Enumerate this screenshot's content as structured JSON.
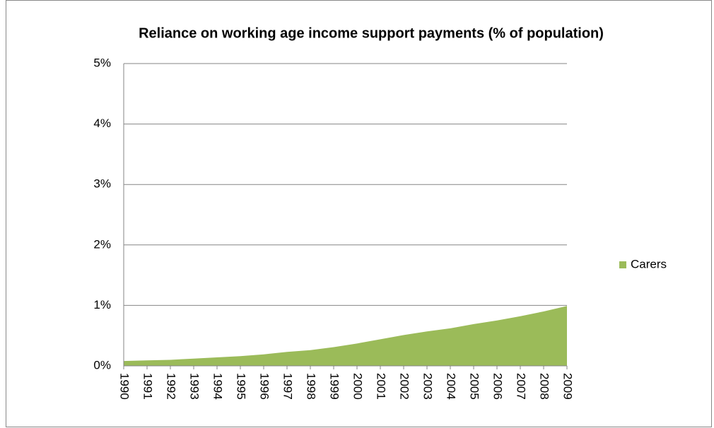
{
  "chart_data": {
    "type": "area",
    "title": "Reliance on working age income support payments (% of population)",
    "categories": [
      "1990",
      "1991",
      "1992",
      "1993",
      "1994",
      "1995",
      "1996",
      "1997",
      "1998",
      "1999",
      "2000",
      "2001",
      "2002",
      "2003",
      "2004",
      "2005",
      "2006",
      "2007",
      "2008",
      "2009"
    ],
    "series": [
      {
        "name": "Carers",
        "color": "#9bbb59",
        "values": [
          0.08,
          0.09,
          0.1,
          0.12,
          0.14,
          0.16,
          0.19,
          0.23,
          0.26,
          0.31,
          0.37,
          0.44,
          0.51,
          0.57,
          0.62,
          0.69,
          0.75,
          0.82,
          0.9,
          0.99
        ]
      }
    ],
    "ylim": [
      0,
      5
    ],
    "yticks": [
      {
        "value": 0,
        "label": "0%"
      },
      {
        "value": 1,
        "label": "1%"
      },
      {
        "value": 2,
        "label": "2%"
      },
      {
        "value": 3,
        "label": "3%"
      },
      {
        "value": 4,
        "label": "4%"
      },
      {
        "value": 5,
        "label": "5%"
      }
    ],
    "grid": true,
    "legend": "right"
  }
}
